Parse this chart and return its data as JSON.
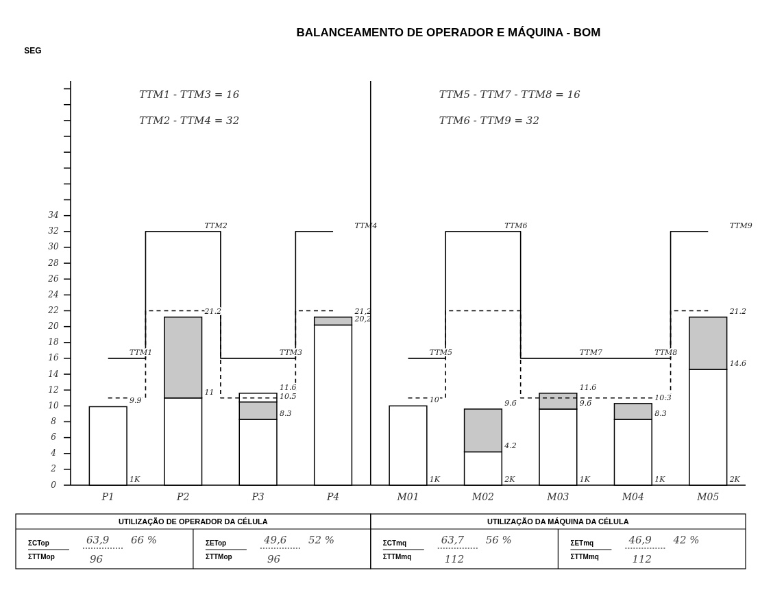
{
  "chart_data": [
    {
      "type": "bar",
      "stacked": true,
      "title": "BALANCEAMENTO DE OPERADOR E MÁQUINA  -  BOM",
      "ylabel": "SEG",
      "categories": [
        "P1",
        "P2",
        "P3",
        "P4"
      ],
      "ylim": [
        0,
        51
      ],
      "yticks": [
        0,
        2,
        4,
        6,
        8,
        10,
        12,
        14,
        16,
        18,
        20,
        22,
        24,
        26,
        28,
        30,
        32,
        34,
        {
          "value": 36,
          "label": null
        },
        {
          "value": 38,
          "label": null
        },
        {
          "value": 40,
          "label": null
        },
        {
          "value": 42,
          "label": null
        },
        {
          "value": 44,
          "label": null
        },
        {
          "value": 46,
          "label": null
        },
        {
          "value": 48,
          "label": null
        },
        {
          "value": 50,
          "label": null
        }
      ],
      "series": [
        {
          "color": "#ffffff",
          "values": [
            9.9,
            11,
            8.3,
            20.2
          ]
        },
        {
          "color": "#c8c8c8",
          "values": [
            null,
            10.2,
            2.2,
            1.0
          ]
        },
        {
          "color": "#ffffff",
          "values": [
            null,
            null,
            1.1,
            null
          ]
        },
        {
          "type": "step",
          "color": "#000000",
          "line_style": "solid",
          "values": [
            16,
            32,
            16,
            32
          ]
        },
        {
          "type": "step",
          "color": "#000000",
          "line_style": "dashed",
          "values": [
            11,
            22,
            11,
            22
          ]
        }
      ],
      "annotations": [
        "TTM1 - TTM3 = 16",
        "TTM2 - TTM4 = 32",
        "UTILIZAÇÃO DE OPERADOR DA CÉLULA",
        "ΣCTop",
        "ΣTTMop",
        "63,9",
        "66 %",
        "96",
        "ΣETop",
        "ΣTTMop",
        "49,6",
        "52 %",
        "96",
        {
          "text": "9.9",
          "x": "P1",
          "y": 9.9
        },
        {
          "text": "1K",
          "x": "P1",
          "y": 0
        },
        {
          "text": "21.2",
          "x": "P2",
          "y": 21.2
        },
        {
          "text": "11",
          "x": "P2",
          "y": 11
        },
        {
          "text": "11.6",
          "x": "P3",
          "y": 11.6
        },
        {
          "text": "10.5",
          "x": "P3",
          "y": 10.5
        },
        {
          "text": "8.3",
          "x": "P3",
          "y": 8.3
        },
        {
          "text": "21,2",
          "x": "P4",
          "y": 21.2
        },
        {
          "text": "20,2",
          "x": "P4",
          "y": 20.2
        },
        {
          "text": "TTM1",
          "x": "P1",
          "y": 16
        },
        {
          "text": "TTM2",
          "x": "P2",
          "y": 32
        },
        {
          "text": "TTM3",
          "x": "P3",
          "y": 16
        },
        {
          "text": "TTM4",
          "x": "P4",
          "y": 32
        }
      ]
    },
    {
      "type": "bar",
      "stacked": true,
      "tick_labels": "x",
      "categories": [
        "M01",
        "M02",
        "M03",
        "M04",
        "M05"
      ],
      "ylim": [
        0,
        51
      ],
      "series": [
        {
          "color": "#ffffff",
          "values": [
            10,
            4.2,
            9.6,
            8.3,
            14.6
          ]
        },
        {
          "color": "#c8c8c8",
          "values": [
            null,
            5.4,
            2.0,
            2.0,
            6.6
          ]
        },
        {
          "type": "step",
          "color": "#000000",
          "line_style": "solid",
          "values": [
            16,
            32,
            16,
            16,
            32
          ]
        },
        {
          "type": "step",
          "color": "#000000",
          "line_style": "dashed",
          "values": [
            11,
            22,
            11,
            11,
            22
          ]
        }
      ],
      "annotations": [
        "TTM5 - TTM7 - TTM8 = 16",
        "TTM6 - TTM9 = 32",
        "UTILIZAÇÃO DA MÁQUINA DA CÉLULA",
        "ΣCTmq",
        "ΣTTMmq",
        "63,7",
        "56 %",
        "112",
        "ΣETmq",
        "ΣTTMmq",
        "46,9",
        "42 %",
        "112",
        {
          "text": "10",
          "x": "M01",
          "y": 10
        },
        {
          "text": "1K",
          "x": "M01",
          "y": 0
        },
        {
          "text": "9.6",
          "x": "M02",
          "y": 9.6
        },
        {
          "text": "4.2",
          "x": "M02",
          "y": 4.2
        },
        {
          "text": "2K",
          "x": "M02",
          "y": 0
        },
        {
          "text": "11.6",
          "x": "M03",
          "y": 11.6
        },
        {
          "text": "9.6",
          "x": "M03",
          "y": 9.6
        },
        {
          "text": "1K",
          "x": "M03",
          "y": 0
        },
        {
          "text": "10.3",
          "x": "M04",
          "y": 10.3
        },
        {
          "text": "8.3",
          "x": "M04",
          "y": 8.3
        },
        {
          "text": "1K",
          "x": "M04",
          "y": 0
        },
        {
          "text": "21.2",
          "x": "M05",
          "y": 21.2
        },
        {
          "text": "14.6",
          "x": "M05",
          "y": 14.6
        },
        {
          "text": "2K",
          "x": "M05",
          "y": 0
        },
        {
          "text": "TTM5",
          "x": "M01",
          "y": 16
        },
        {
          "text": "TTM6",
          "x": "M02",
          "y": 32
        },
        {
          "text": "TTM7",
          "x": "M03",
          "y": 16
        },
        {
          "text": "TTM8",
          "x": "M04",
          "y": 16
        },
        {
          "text": "TTM9",
          "x": "M05",
          "y": 32
        }
      ]
    }
  ]
}
